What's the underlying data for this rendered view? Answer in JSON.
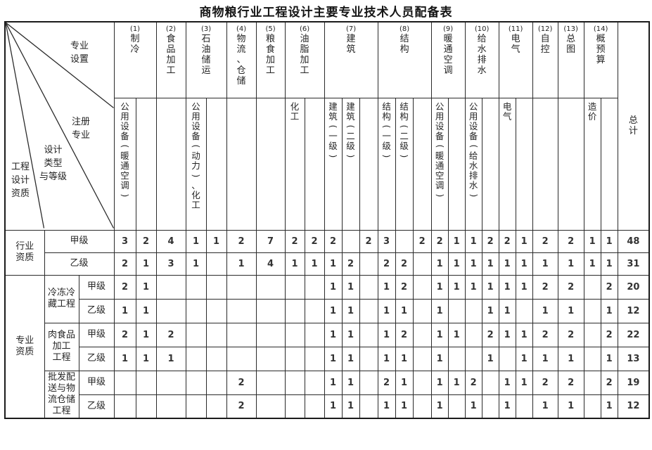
{
  "title": "商物粮行业工程设计主要专业技术人员配备表",
  "corner": {
    "labels": [
      "专业\n设置",
      "注册\n专业",
      "设计\n类型\n与等级",
      "工程\n设计\n资质"
    ]
  },
  "total_label": "总计",
  "columns": [
    {
      "num": "(1)",
      "name": "制冷",
      "subs": [
        "公用设备(暖通空调)",
        ""
      ]
    },
    {
      "num": "(2)",
      "name": "食品加工",
      "subs": [
        ""
      ]
    },
    {
      "num": "(3)",
      "name": "石油储运",
      "subs": [
        "公用设备(动力)、化工",
        ""
      ]
    },
    {
      "num": "(4)",
      "name": "物流、仓储",
      "subs": [
        ""
      ]
    },
    {
      "num": "(5)",
      "name": "粮食加工",
      "subs": [
        ""
      ]
    },
    {
      "num": "(6)",
      "name": "油脂加工",
      "subs": [
        "化工",
        ""
      ]
    },
    {
      "num": "(7)",
      "name": "建筑",
      "subs": [
        "建筑(一级)",
        "建筑(二级)",
        ""
      ]
    },
    {
      "num": "(8)",
      "name": "结构",
      "subs": [
        "结构(一级)",
        "结构(二级)",
        ""
      ]
    },
    {
      "num": "(9)",
      "name": "暖通空调",
      "subs": [
        "公用设备(暖通空调)",
        ""
      ]
    },
    {
      "num": "(10)",
      "name": "给水排水",
      "subs": [
        "公用设备(给水排水)",
        ""
      ]
    },
    {
      "num": "(11)",
      "name": "电气",
      "subs": [
        "电气",
        ""
      ]
    },
    {
      "num": "(12)",
      "name": "自控",
      "subs": [
        ""
      ]
    },
    {
      "num": "(13)",
      "name": "总图",
      "subs": [
        ""
      ]
    },
    {
      "num": "(14)",
      "name": "概预算",
      "subs": [
        "造价",
        ""
      ]
    }
  ],
  "rows": [
    {
      "group": "行业\n资质",
      "group_span": 2,
      "grade": "甲级",
      "grade_span": 2,
      "cells": [
        "3",
        "2",
        "4",
        "1",
        "1",
        "2",
        "7",
        "2",
        "2",
        "2",
        "",
        "2",
        "3",
        "",
        "2",
        "2",
        "1",
        "1",
        "2",
        "2",
        "1",
        "2",
        "2",
        "1",
        "1"
      ],
      "total": "48"
    },
    {
      "grade": "乙级",
      "grade_span": 2,
      "cells": [
        "2",
        "1",
        "3",
        "1",
        "",
        "1",
        "4",
        "1",
        "1",
        "1",
        "2",
        "",
        "2",
        "2",
        "",
        "1",
        "1",
        "1",
        "1",
        "1",
        "1",
        "1",
        "1",
        "1",
        "1"
      ],
      "total": "31"
    },
    {
      "group": "专业\n资质",
      "group_span": 6,
      "project": "冷冻冷\n藏工程",
      "project_span": 2,
      "grade": "甲级",
      "cells": [
        "2",
        "1",
        "",
        "",
        "",
        "",
        "",
        "",
        "",
        "1",
        "1",
        "",
        "1",
        "2",
        "",
        "1",
        "1",
        "1",
        "1",
        "1",
        "1",
        "2",
        "2",
        "",
        "2"
      ],
      "total": "20"
    },
    {
      "grade": "乙级",
      "cells": [
        "1",
        "1",
        "",
        "",
        "",
        "",
        "",
        "",
        "",
        "1",
        "1",
        "",
        "1",
        "1",
        "",
        "1",
        "",
        "",
        "1",
        "1",
        "",
        "1",
        "1",
        "",
        "1"
      ],
      "total": "12"
    },
    {
      "project": "肉食品\n加工\n工程",
      "project_span": 2,
      "grade": "甲级",
      "cells": [
        "2",
        "1",
        "2",
        "",
        "",
        "",
        "",
        "",
        "",
        "1",
        "1",
        "",
        "1",
        "2",
        "",
        "1",
        "1",
        "",
        "2",
        "1",
        "1",
        "2",
        "2",
        "",
        "2"
      ],
      "total": "22"
    },
    {
      "grade": "乙级",
      "cells": [
        "1",
        "1",
        "1",
        "",
        "",
        "",
        "",
        "",
        "",
        "1",
        "1",
        "",
        "1",
        "1",
        "",
        "1",
        "",
        "",
        "1",
        "",
        "1",
        "1",
        "1",
        "",
        "1"
      ],
      "total": "13"
    },
    {
      "project": "批发配\n送与物\n流仓储\n工程",
      "project_span": 2,
      "grade": "甲级",
      "cells": [
        "",
        "",
        "",
        "",
        "",
        "2",
        "",
        "",
        "",
        "1",
        "1",
        "",
        "2",
        "1",
        "",
        "1",
        "1",
        "2",
        "",
        "1",
        "1",
        "2",
        "2",
        "",
        "2"
      ],
      "total": "19"
    },
    {
      "grade": "乙级",
      "cells": [
        "",
        "",
        "",
        "",
        "",
        "2",
        "",
        "",
        "",
        "1",
        "1",
        "",
        "1",
        "1",
        "",
        "1",
        "",
        "1",
        "",
        "1",
        "",
        "1",
        "1",
        "",
        "1"
      ],
      "total": "12"
    }
  ],
  "colors": {
    "border": "#2a2a2a",
    "text": "#262626",
    "title_text": "#151515"
  }
}
